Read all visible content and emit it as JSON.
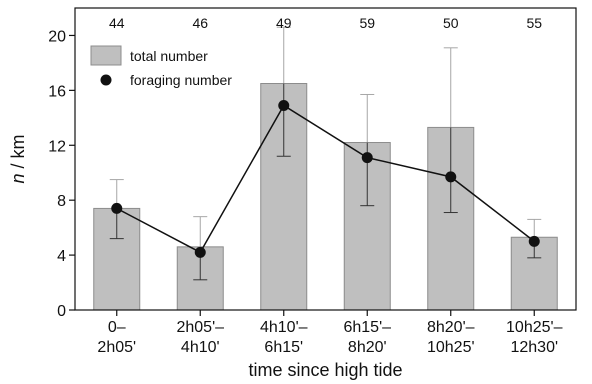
{
  "chart_data": {
    "type": "bar",
    "xlabel": "time since high tide",
    "ylabel_italic": "n",
    "ylabel_rest": " / km",
    "ylim": [
      0,
      22
    ],
    "yticks": [
      0,
      4,
      8,
      12,
      16,
      20
    ],
    "grid": false,
    "legend_placement": "top-left",
    "categories": [
      {
        "line1": "0–",
        "line2": "2h05'"
      },
      {
        "line1": "2h05'–",
        "line2": "4h10'"
      },
      {
        "line1": "4h10'–",
        "line2": "6h15'"
      },
      {
        "line1": "6h15'–",
        "line2": "8h20'"
      },
      {
        "line1": "8h20'–",
        "line2": "10h25'"
      },
      {
        "line1": "10h25'–",
        "line2": "12h30'"
      }
    ],
    "counts": [
      "44",
      "46",
      "49",
      "59",
      "50",
      "55"
    ],
    "series": [
      {
        "name": "total number",
        "kind": "bar",
        "values": [
          7.4,
          4.6,
          16.5,
          12.2,
          13.3,
          5.3
        ],
        "error_upper": [
          9.5,
          6.8,
          20.6,
          15.7,
          19.1,
          6.6
        ],
        "color": "#bfbfbf"
      },
      {
        "name": "foraging number",
        "kind": "line",
        "values": [
          7.4,
          4.2,
          14.9,
          11.1,
          9.7,
          5.0
        ],
        "error_lower": [
          5.2,
          2.2,
          11.2,
          7.6,
          7.1,
          3.8
        ],
        "error_upper": [
          9.5,
          6.8,
          20.6,
          15.7,
          19.1,
          6.6
        ],
        "color": "#111111"
      }
    ]
  }
}
